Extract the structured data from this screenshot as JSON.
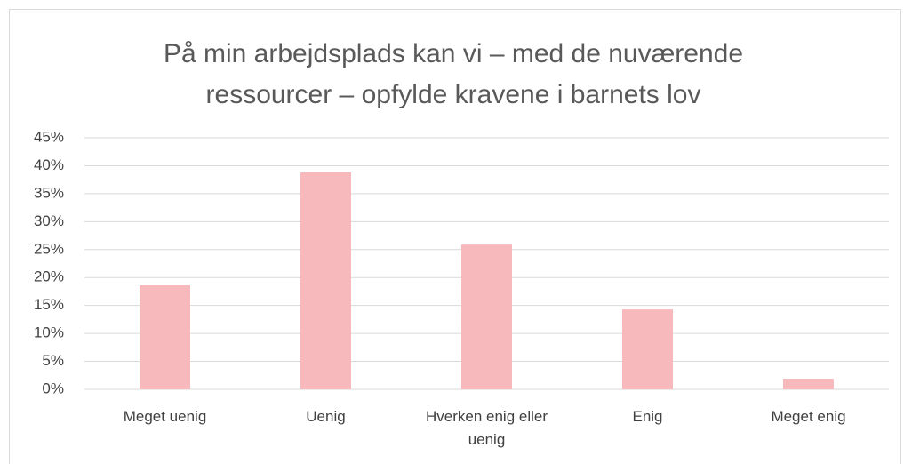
{
  "chart_data": {
    "type": "bar",
    "title": "På min arbejdsplads kan vi – med de nuværende ressourcer – opfylde kravene i barnets lov",
    "categories": [
      "Meget uenig",
      "Uenig",
      "Hverken enig eller uenig",
      "Enig",
      "Meget enig"
    ],
    "values": [
      18.6,
      38.8,
      25.9,
      14.3,
      1.9
    ],
    "color": "#f7b9bb",
    "ylim": [
      0,
      45
    ],
    "yticks": [
      {
        "value": 0,
        "label": "0%"
      },
      {
        "value": 5,
        "label": "5%"
      },
      {
        "value": 10,
        "label": "10%"
      },
      {
        "value": 15,
        "label": "15%"
      },
      {
        "value": 20,
        "label": "20%"
      },
      {
        "value": 25,
        "label": "25%"
      },
      {
        "value": 30,
        "label": "30%"
      },
      {
        "value": 35,
        "label": "35%"
      },
      {
        "value": 40,
        "label": "40%"
      },
      {
        "value": 45,
        "label": "45%"
      }
    ],
    "grid": true
  }
}
